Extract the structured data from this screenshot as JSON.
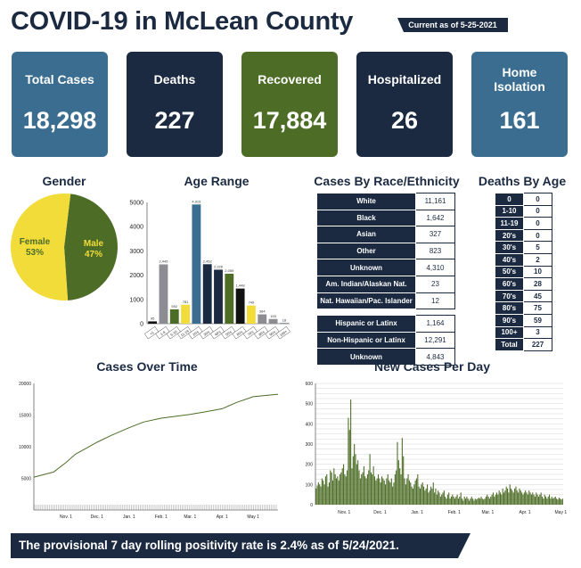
{
  "header": {
    "title": "COVID-19 in McLean County",
    "as_of": "Current as of 5-25-2021"
  },
  "cards": [
    {
      "label": "Total Cases",
      "value": "18,298",
      "color": "#3b6d90"
    },
    {
      "label": "Deaths",
      "value": "227",
      "color": "#1b2a41"
    },
    {
      "label": "Recovered",
      "value": "17,884",
      "color": "#4d6d26"
    },
    {
      "label": "Hospitalized",
      "value": "26",
      "color": "#1b2a41"
    },
    {
      "label": "Home Isolation",
      "value": "161",
      "color": "#3b6d90"
    }
  ],
  "sections": {
    "gender": "Gender",
    "age": "Age Range",
    "race": "Cases By Race/Ethnicity",
    "deaths_age": "Deaths By Age",
    "over_time": "Cases Over Time",
    "per_day": "New Cases Per Day"
  },
  "race_rows": [
    {
      "label": "White",
      "value": "11,161"
    },
    {
      "label": "Black",
      "value": "1,642"
    },
    {
      "label": "Asian",
      "value": "327"
    },
    {
      "label": "Other",
      "value": "823"
    },
    {
      "label": "Unknown",
      "value": "4,310"
    },
    {
      "label": "Am. Indian/Alaskan Nat.",
      "value": "23"
    },
    {
      "label": "Nat. Hawaiian/Pac. Islander",
      "value": "12"
    }
  ],
  "ethnicity_rows": [
    {
      "label": "Hispanic or Latinx",
      "value": "1,164"
    },
    {
      "label": "Non-Hispanic or Latinx",
      "value": "12,291"
    },
    {
      "label": "Unknown",
      "value": "4,843"
    }
  ],
  "deaths_by_age": [
    {
      "label": "0",
      "value": "0"
    },
    {
      "label": "1-10",
      "value": "0"
    },
    {
      "label": "11-19",
      "value": "0"
    },
    {
      "label": "20's",
      "value": "0"
    },
    {
      "label": "30's",
      "value": "5"
    },
    {
      "label": "40's",
      "value": "2"
    },
    {
      "label": "50's",
      "value": "10"
    },
    {
      "label": "60's",
      "value": "28"
    },
    {
      "label": "70's",
      "value": "45"
    },
    {
      "label": "80's",
      "value": "75"
    },
    {
      "label": "90's",
      "value": "59"
    },
    {
      "label": "100+",
      "value": "3"
    },
    {
      "label": "Total",
      "value": "227"
    }
  ],
  "footer": "The provisional 7 day rolling positivity rate is 2.4% as of 5/24/2021.",
  "chart_data": [
    {
      "type": "pie",
      "title": "Gender",
      "series": [
        {
          "name": "Male",
          "label": "47%",
          "value": 47,
          "color": "#4d6d26",
          "text_color": "#f2dc3a"
        },
        {
          "name": "Female",
          "label": "53%",
          "value": 53,
          "color": "#f2dc3a",
          "text_color": "#4d6d26"
        }
      ]
    },
    {
      "type": "bar",
      "title": "Age Range",
      "categories": [
        "<1",
        "1-4",
        "5-10",
        "11-19",
        "20's",
        "30's",
        "40's",
        "50's",
        "60's",
        "70's",
        "80's",
        "90's",
        "100+"
      ],
      "values": [
        95,
        2445,
        592,
        781,
        4915,
        2452,
        2226,
        2059,
        1448,
        749,
        384,
        193,
        18
      ],
      "data_labels": [
        "95",
        "2,445",
        "592",
        "781",
        "4,915",
        "2,452",
        "2,226",
        "2,059",
        "1,448",
        "749",
        "384",
        "193",
        "18"
      ],
      "colors": [
        "#111111",
        "#8c8c92",
        "#4d6d26",
        "#f2dc3a",
        "#3b6d90",
        "#1b2a41",
        "#1b2a41",
        "#4d6d26",
        "#111111",
        "#f2dc3a",
        "#8c8c92",
        "#8c8c92",
        "#1b2a41"
      ],
      "yticks": [
        0,
        1000,
        2000,
        3000,
        4000,
        5000
      ],
      "ylim": [
        0,
        5000
      ]
    },
    {
      "type": "line",
      "title": "Cases Over Time",
      "x_ticks": [
        "Nov. 1",
        "Dec. 1",
        "Jan. 1",
        "Feb. 1",
        "Mar. 1",
        "Apr. 1",
        "May 1"
      ],
      "yticks": [
        5000,
        10000,
        15000,
        20000
      ],
      "ylim": [
        0,
        20000
      ],
      "x": [
        "2020-10-01",
        "2020-10-20",
        "2020-11-01",
        "2020-11-10",
        "2020-11-20",
        "2020-12-01",
        "2020-12-15",
        "2021-01-01",
        "2021-01-15",
        "2021-02-01",
        "2021-02-15",
        "2021-03-01",
        "2021-03-15",
        "2021-04-01",
        "2021-04-15",
        "2021-05-01",
        "2021-05-25"
      ],
      "values": [
        5200,
        6000,
        7500,
        8800,
        9700,
        10700,
        11800,
        13000,
        13900,
        14500,
        14800,
        15100,
        15500,
        16000,
        17000,
        17900,
        18298
      ],
      "color": "#4d6d26"
    },
    {
      "type": "bar",
      "title": "New Cases Per Day",
      "x_ticks": [
        "Nov. 1",
        "Dec. 1",
        "Jan. 1",
        "Feb. 1",
        "Mar. 1",
        "Apr. 1",
        "May 1"
      ],
      "yticks": [
        0,
        100,
        200,
        300,
        400,
        500,
        600
      ],
      "ylim": [
        0,
        600
      ],
      "start_date": "2020-10-08",
      "values": [
        80,
        95,
        110,
        100,
        90,
        130,
        120,
        100,
        140,
        150,
        90,
        110,
        170,
        160,
        120,
        180,
        150,
        130,
        140,
        120,
        150,
        160,
        180,
        200,
        150,
        140,
        170,
        430,
        370,
        520,
        180,
        240,
        300,
        250,
        200,
        220,
        170,
        130,
        150,
        160,
        190,
        140,
        130,
        150,
        170,
        250,
        160,
        150,
        190,
        140,
        120,
        130,
        150,
        130,
        110,
        140,
        130,
        120,
        100,
        130,
        150,
        120,
        110,
        130,
        90,
        110,
        150,
        170,
        310,
        220,
        180,
        150,
        330,
        240,
        130,
        100,
        130,
        150,
        120,
        110,
        90,
        80,
        100,
        120,
        130,
        150,
        90,
        80,
        100,
        110,
        90,
        70,
        80,
        100,
        60,
        70,
        90,
        80,
        110,
        60,
        80,
        50,
        70,
        60,
        40,
        50,
        60,
        70,
        40,
        30,
        50,
        60,
        30,
        40,
        50,
        40,
        30,
        40,
        50,
        30,
        40,
        60,
        30,
        20,
        40,
        30,
        40,
        30,
        20,
        30,
        40,
        30,
        20,
        30,
        25,
        30,
        35,
        30,
        40,
        30,
        25,
        30,
        40,
        50,
        40,
        30,
        40,
        50,
        60,
        40,
        50,
        60,
        50,
        70,
        60,
        50,
        80,
        60,
        70,
        90,
        80,
        60,
        100,
        80,
        70,
        60,
        80,
        90,
        70,
        60,
        80,
        70,
        60,
        50,
        60,
        70,
        60,
        50,
        70,
        60,
        50,
        60,
        50,
        40,
        60,
        50,
        40,
        50,
        60,
        40,
        30,
        50,
        40,
        30,
        40,
        50,
        30,
        40,
        30,
        35,
        40,
        30,
        25,
        35,
        30,
        25,
        30
      ],
      "color": "#4d6d26"
    }
  ]
}
